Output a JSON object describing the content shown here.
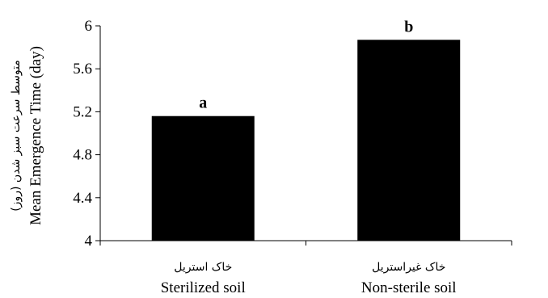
{
  "chart_data": {
    "type": "bar",
    "categories": [
      "Sterilized soil",
      "Non-sterile soil"
    ],
    "categories_fa": [
      "خاک استریل",
      "خاک غیراستریل"
    ],
    "values": [
      5.16,
      5.87
    ],
    "data_labels": [
      "a",
      "b"
    ],
    "ylabel": "Mean Emergence Time (day)",
    "ylabel_fa": "متوسط سرعت سبز شدن (روز)",
    "ylim": [
      4,
      6
    ],
    "yticks": [
      4,
      4.4,
      4.8,
      5.2,
      5.6,
      6
    ],
    "ytick_labels": [
      "4",
      "4.4",
      "4.8",
      "5.2",
      "5.6",
      "6"
    ],
    "grid": false,
    "bar_color": "#000000"
  }
}
